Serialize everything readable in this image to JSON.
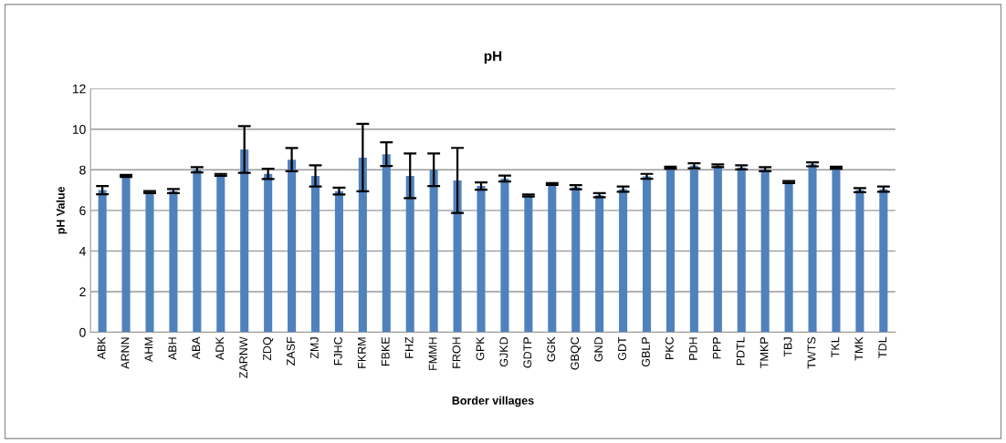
{
  "chart_data": {
    "type": "bar",
    "title": "pH",
    "xlabel": "Border villages",
    "ylabel": "pH Value",
    "categories": [
      "ABK",
      "ARNN",
      "AHM",
      "ABH",
      "ABA",
      "ADK",
      "ZARNW",
      "ZDQ",
      "ZASF",
      "ZMJ",
      "FJHC",
      "FKRM",
      "FBKE",
      "FHZ",
      "FMMH",
      "FROH",
      "GPK",
      "GJKD",
      "GDTP",
      "GGK",
      "GBQC",
      "GND",
      "GDT",
      "GBLP",
      "PKC",
      "PDH",
      "PPP",
      "PDTL",
      "TMKP",
      "TBJ",
      "TWTS",
      "TKL",
      "TMK",
      "TDL"
    ],
    "series": [
      {
        "color": "#4f81bd",
        "values": [
          7.0,
          7.7,
          6.9,
          6.95,
          8.0,
          7.75,
          9.0,
          7.8,
          8.5,
          7.7,
          6.95,
          8.6,
          8.77,
          7.7,
          8.0,
          7.48,
          7.2,
          7.57,
          6.73,
          7.3,
          7.14,
          6.75,
          7.05,
          7.68,
          8.1,
          8.2,
          8.2,
          8.12,
          8.03,
          7.4,
          8.27,
          8.1,
          7.0,
          7.05
        ],
        "errors": [
          0.2,
          0.05,
          0.05,
          0.1,
          0.13,
          0.05,
          1.15,
          0.25,
          0.57,
          0.52,
          0.17,
          1.66,
          0.58,
          1.1,
          0.8,
          1.6,
          0.18,
          0.15,
          0.05,
          0.05,
          0.1,
          0.1,
          0.13,
          0.12,
          0.05,
          0.12,
          0.07,
          0.1,
          0.1,
          0.05,
          0.1,
          0.05,
          0.1,
          0.13
        ]
      }
    ],
    "ylim": [
      0,
      12
    ],
    "yticks": [
      0,
      2,
      4,
      6,
      8,
      10,
      12
    ],
    "grid": "y"
  }
}
